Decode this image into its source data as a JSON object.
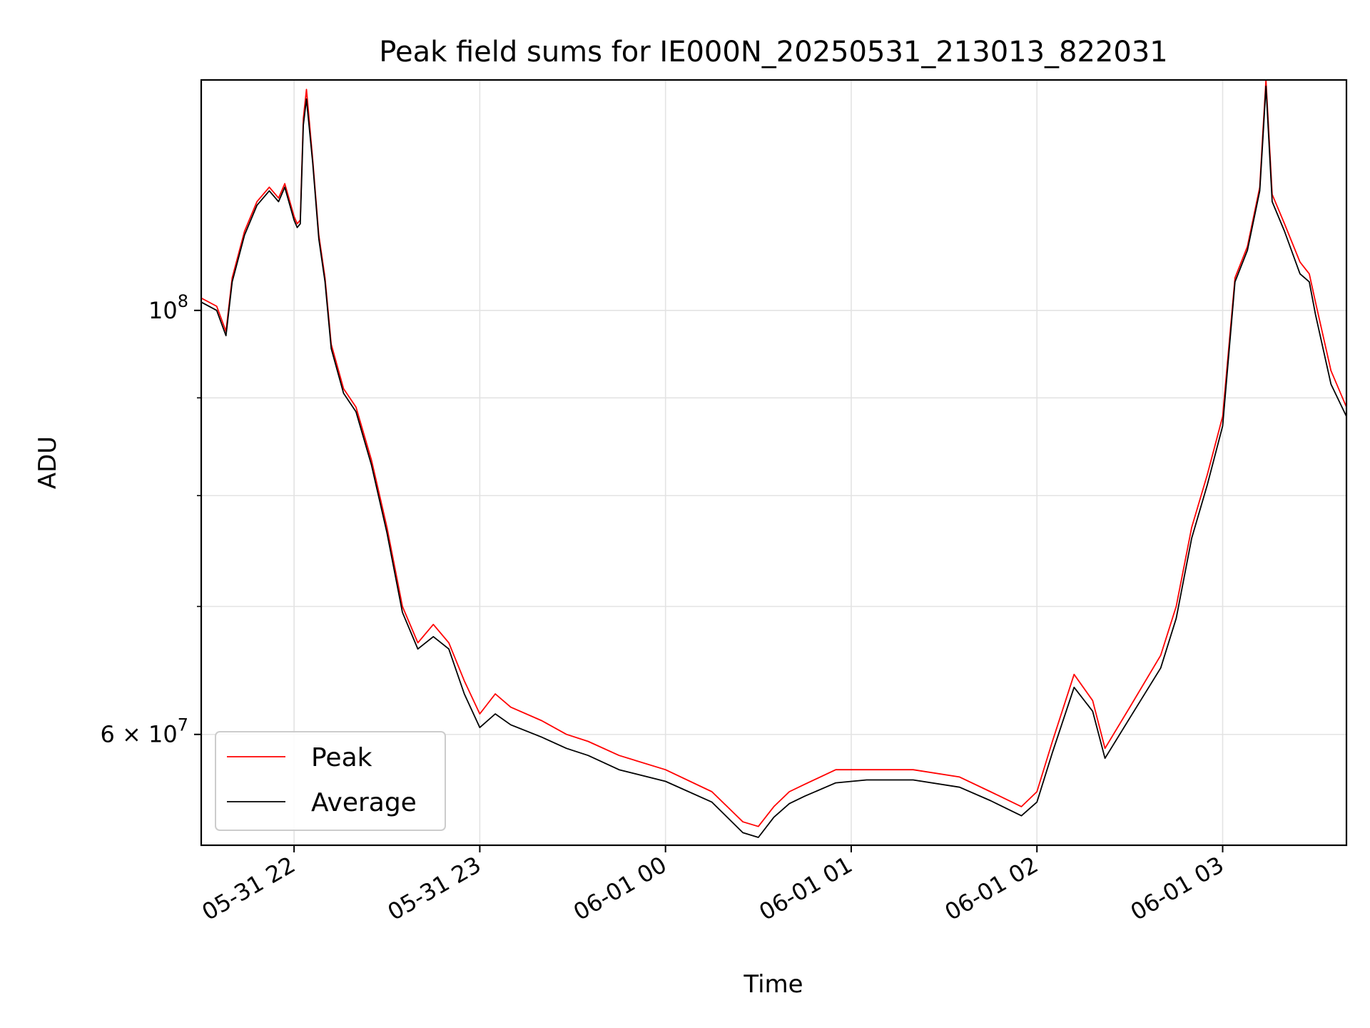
{
  "chart_data": {
    "type": "line",
    "title": "Peak field sums for IE000N_20250531_213013_822031",
    "xlabel": "Time",
    "ylabel": "ADU",
    "y_scale": "log",
    "xlim": [
      "2025-05-31 21:30",
      "2025-06-01 03:40"
    ],
    "ylim": [
      52500000,
      132000000
    ],
    "grid": true,
    "legend_position": "lower-left",
    "x_ticks": [
      "2025-05-31 22:00",
      "2025-05-31 23:00",
      "2025-06-01 00:00",
      "2025-06-01 01:00",
      "2025-06-01 02:00",
      "2025-06-01 03:00"
    ],
    "x_tick_labels": [
      "05-31 22",
      "05-31 23",
      "06-01 00",
      "06-01 01",
      "06-01 02",
      "06-01 03"
    ],
    "y_major_ticks": [
      60000000,
      100000000
    ],
    "y_major_tick_labels": [
      {
        "base": "6 × 10",
        "exp": "7"
      },
      {
        "base": "10",
        "exp": "8"
      }
    ],
    "y_minor_ticks": [
      70000000,
      80000000,
      90000000
    ],
    "series": [
      {
        "name": "Peak",
        "color": "#ff0000",
        "x": [
          "2025-05-31 21:30",
          "2025-05-31 21:35",
          "2025-05-31 21:38",
          "2025-05-31 21:40",
          "2025-05-31 21:44",
          "2025-05-31 21:48",
          "2025-05-31 21:52",
          "2025-05-31 21:55",
          "2025-05-31 21:56",
          "2025-05-31 21:57",
          "2025-05-31 22:00",
          "2025-05-31 22:01",
          "2025-05-31 22:02",
          "2025-05-31 22:03",
          "2025-05-31 22:04",
          "2025-05-31 22:06",
          "2025-05-31 22:08",
          "2025-05-31 22:10",
          "2025-05-31 22:12",
          "2025-05-31 22:16",
          "2025-05-31 22:20",
          "2025-05-31 22:25",
          "2025-05-31 22:30",
          "2025-05-31 22:35",
          "2025-05-31 22:40",
          "2025-05-31 22:45",
          "2025-05-31 22:50",
          "2025-05-31 22:55",
          "2025-05-31 23:00",
          "2025-05-31 23:05",
          "2025-05-31 23:10",
          "2025-05-31 23:20",
          "2025-05-31 23:28",
          "2025-05-31 23:35",
          "2025-05-31 23:45",
          "2025-06-01 00:00",
          "2025-06-01 00:15",
          "2025-06-01 00:25",
          "2025-06-01 00:30",
          "2025-06-01 00:35",
          "2025-06-01 00:40",
          "2025-06-01 00:45",
          "2025-06-01 00:55",
          "2025-06-01 01:05",
          "2025-06-01 01:20",
          "2025-06-01 01:35",
          "2025-06-01 01:45",
          "2025-06-01 01:55",
          "2025-06-01 02:00",
          "2025-06-01 02:05",
          "2025-06-01 02:12",
          "2025-06-01 02:18",
          "2025-06-01 02:22",
          "2025-06-01 02:30",
          "2025-06-01 02:40",
          "2025-06-01 02:45",
          "2025-06-01 02:50",
          "2025-06-01 02:55",
          "2025-06-01 03:00",
          "2025-06-01 03:04",
          "2025-06-01 03:08",
          "2025-06-01 03:12",
          "2025-06-01 03:13",
          "2025-06-01 03:14",
          "2025-06-01 03:16",
          "2025-06-01 03:20",
          "2025-06-01 03:25",
          "2025-06-01 03:28",
          "2025-06-01 03:30",
          "2025-06-01 03:35",
          "2025-06-01 03:40"
        ],
        "y": [
          101500000,
          100500000,
          97500000,
          104000000,
          110000000,
          114000000,
          116000000,
          114500000,
          115500000,
          116500000,
          112000000,
          111000000,
          111500000,
          126000000,
          130500000,
          120000000,
          109500000,
          104000000,
          96000000,
          91000000,
          89000000,
          83500000,
          77000000,
          70000000,
          67000000,
          68500000,
          67000000,
          64000000,
          61500000,
          63000000,
          62000000,
          61000000,
          60000000,
          59500000,
          58500000,
          57500000,
          56000000,
          54000000,
          53700000,
          55000000,
          56000000,
          56500000,
          57500000,
          57500000,
          57500000,
          57000000,
          56000000,
          55000000,
          56000000,
          59500000,
          64500000,
          62500000,
          59000000,
          62000000,
          66000000,
          70000000,
          77000000,
          82000000,
          88000000,
          104000000,
          108000000,
          116000000,
          124000000,
          132000000,
          115000000,
          111000000,
          106000000,
          104500000,
          101000000,
          93000000,
          89000000
        ]
      },
      {
        "name": "Average",
        "color": "#000000",
        "x": [
          "2025-05-31 21:30",
          "2025-05-31 21:35",
          "2025-05-31 21:38",
          "2025-05-31 21:40",
          "2025-05-31 21:44",
          "2025-05-31 21:48",
          "2025-05-31 21:52",
          "2025-05-31 21:55",
          "2025-05-31 21:56",
          "2025-05-31 21:57",
          "2025-05-31 22:00",
          "2025-05-31 22:01",
          "2025-05-31 22:02",
          "2025-05-31 22:03",
          "2025-05-31 22:04",
          "2025-05-31 22:06",
          "2025-05-31 22:08",
          "2025-05-31 22:10",
          "2025-05-31 22:12",
          "2025-05-31 22:16",
          "2025-05-31 22:20",
          "2025-05-31 22:25",
          "2025-05-31 22:30",
          "2025-05-31 22:35",
          "2025-05-31 22:40",
          "2025-05-31 22:45",
          "2025-05-31 22:50",
          "2025-05-31 22:55",
          "2025-05-31 23:00",
          "2025-05-31 23:05",
          "2025-05-31 23:10",
          "2025-05-31 23:20",
          "2025-05-31 23:28",
          "2025-05-31 23:35",
          "2025-05-31 23:45",
          "2025-06-01 00:00",
          "2025-06-01 00:15",
          "2025-06-01 00:25",
          "2025-06-01 00:30",
          "2025-06-01 00:35",
          "2025-06-01 00:40",
          "2025-06-01 00:45",
          "2025-06-01 00:55",
          "2025-06-01 01:05",
          "2025-06-01 01:20",
          "2025-06-01 01:35",
          "2025-06-01 01:45",
          "2025-06-01 01:55",
          "2025-06-01 02:00",
          "2025-06-01 02:05",
          "2025-06-01 02:12",
          "2025-06-01 02:18",
          "2025-06-01 02:22",
          "2025-06-01 02:30",
          "2025-06-01 02:40",
          "2025-06-01 02:45",
          "2025-06-01 02:50",
          "2025-06-01 02:55",
          "2025-06-01 03:00",
          "2025-06-01 03:04",
          "2025-06-01 03:08",
          "2025-06-01 03:12",
          "2025-06-01 03:13",
          "2025-06-01 03:14",
          "2025-06-01 03:16",
          "2025-06-01 03:20",
          "2025-06-01 03:25",
          "2025-06-01 03:28",
          "2025-06-01 03:30",
          "2025-06-01 03:35",
          "2025-06-01 03:40"
        ],
        "y": [
          101000000,
          100000000,
          97000000,
          103500000,
          109500000,
          113500000,
          115500000,
          114000000,
          115000000,
          116000000,
          111500000,
          110500000,
          111000000,
          125000000,
          129000000,
          119500000,
          109000000,
          103500000,
          95500000,
          90500000,
          88500000,
          83000000,
          76500000,
          69500000,
          66500000,
          67500000,
          66500000,
          63000000,
          60500000,
          61500000,
          60700000,
          59800000,
          59000000,
          58500000,
          57500000,
          56700000,
          55300000,
          53300000,
          53000000,
          54300000,
          55200000,
          55700000,
          56600000,
          56800000,
          56800000,
          56300000,
          55400000,
          54400000,
          55300000,
          58700000,
          63500000,
          61700000,
          58300000,
          61200000,
          65000000,
          69000000,
          76000000,
          81000000,
          87000000,
          103500000,
          107500000,
          115500000,
          123000000,
          131000000,
          114000000,
          110000000,
          104500000,
          103500000,
          99500000,
          91500000,
          88000000
        ]
      }
    ]
  }
}
